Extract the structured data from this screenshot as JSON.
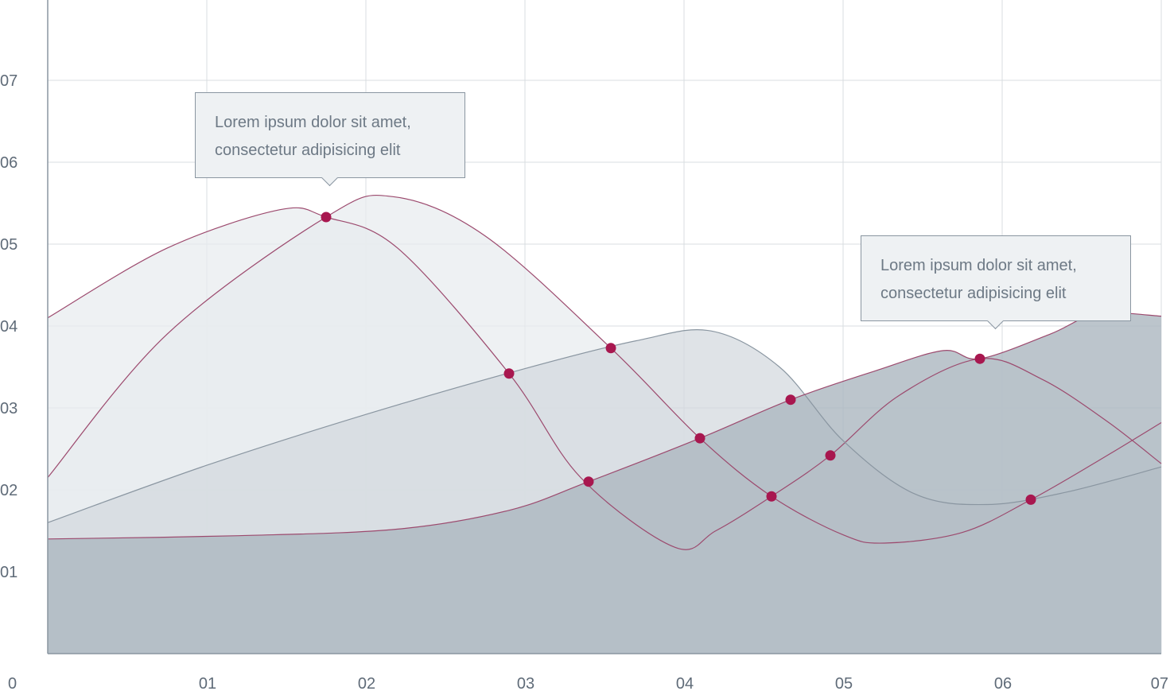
{
  "chart_data": {
    "type": "area",
    "x_ticks": [
      "0",
      "01",
      "02",
      "03",
      "04",
      "05",
      "06",
      "07"
    ],
    "y_ticks": [
      "01",
      "02",
      "03",
      "04",
      "05",
      "06",
      "07"
    ],
    "xlim": [
      0,
      7
    ],
    "ylim": [
      0,
      8
    ],
    "grid": true,
    "colors": {
      "grid": "#d9dde1",
      "axis": "#8a96a1",
      "line": "#9c4a6e",
      "line_alt": "#8a96a1",
      "marker": "#a8174f",
      "fill_light": "#e8ebee",
      "fill_mid": "#d2d8de",
      "fill_dark": "#adb8c1",
      "tick_text": "#5f6b78"
    },
    "series": [
      {
        "style": "light",
        "points": [
          [
            0,
            4.1
          ],
          [
            0.75,
            4.95
          ],
          [
            1.46,
            5.42
          ],
          [
            1.75,
            5.33
          ],
          [
            2.2,
            4.95
          ],
          [
            2.9,
            3.42
          ],
          [
            3.35,
            2.15
          ],
          [
            3.94,
            1.3
          ],
          [
            4.2,
            1.5
          ],
          [
            4.55,
            1.92
          ],
          [
            4.92,
            2.42
          ],
          [
            5.35,
            3.15
          ],
          [
            5.86,
            3.6
          ],
          [
            6.25,
            3.35
          ],
          [
            6.65,
            2.85
          ],
          [
            7,
            2.32
          ]
        ]
      },
      {
        "style": "light",
        "points": [
          [
            0,
            2.15
          ],
          [
            0.75,
            3.9
          ],
          [
            1.75,
            5.33
          ],
          [
            2.17,
            5.58
          ],
          [
            2.75,
            5.1
          ],
          [
            3.54,
            3.73
          ],
          [
            4.1,
            2.63
          ],
          [
            4.55,
            1.92
          ],
          [
            5.0,
            1.45
          ],
          [
            5.26,
            1.35
          ],
          [
            5.75,
            1.48
          ],
          [
            6.18,
            1.88
          ],
          [
            6.6,
            2.35
          ],
          [
            7,
            2.82
          ]
        ]
      },
      {
        "style": "mid",
        "stroke": "alt",
        "points": [
          [
            0,
            1.6
          ],
          [
            1.0,
            2.3
          ],
          [
            2.0,
            2.92
          ],
          [
            3.0,
            3.48
          ],
          [
            3.7,
            3.82
          ],
          [
            4.17,
            3.94
          ],
          [
            4.6,
            3.5
          ],
          [
            5.0,
            2.6
          ],
          [
            5.45,
            1.95
          ],
          [
            5.9,
            1.82
          ],
          [
            6.4,
            1.97
          ],
          [
            7,
            2.28
          ]
        ]
      },
      {
        "style": "dark",
        "points": [
          [
            0,
            1.4
          ],
          [
            1.2,
            1.44
          ],
          [
            2.2,
            1.52
          ],
          [
            2.9,
            1.75
          ],
          [
            3.4,
            2.1
          ],
          [
            4.1,
            2.63
          ],
          [
            4.67,
            3.1
          ],
          [
            5.2,
            3.45
          ],
          [
            5.63,
            3.7
          ],
          [
            5.86,
            3.6
          ],
          [
            6.3,
            3.9
          ],
          [
            6.6,
            4.15
          ],
          [
            7,
            4.12
          ]
        ]
      }
    ],
    "markers": [
      [
        1.75,
        5.33
      ],
      [
        2.9,
        3.42
      ],
      [
        3.54,
        3.73
      ],
      [
        3.4,
        2.1
      ],
      [
        4.1,
        2.63
      ],
      [
        4.67,
        3.1
      ],
      [
        4.55,
        1.92
      ],
      [
        4.92,
        2.42
      ],
      [
        5.86,
        3.6
      ],
      [
        6.18,
        1.88
      ]
    ],
    "annotations": [
      {
        "line1": "Lorem ipsum dolor sit amet,",
        "line2": "consectetur adipisicing elit",
        "x": 1.75,
        "y": 5.33
      },
      {
        "line1": "Lorem ipsum dolor sit amet,",
        "line2": "consectetur adipisicing elit",
        "x": 5.86,
        "y": 3.6
      }
    ]
  }
}
